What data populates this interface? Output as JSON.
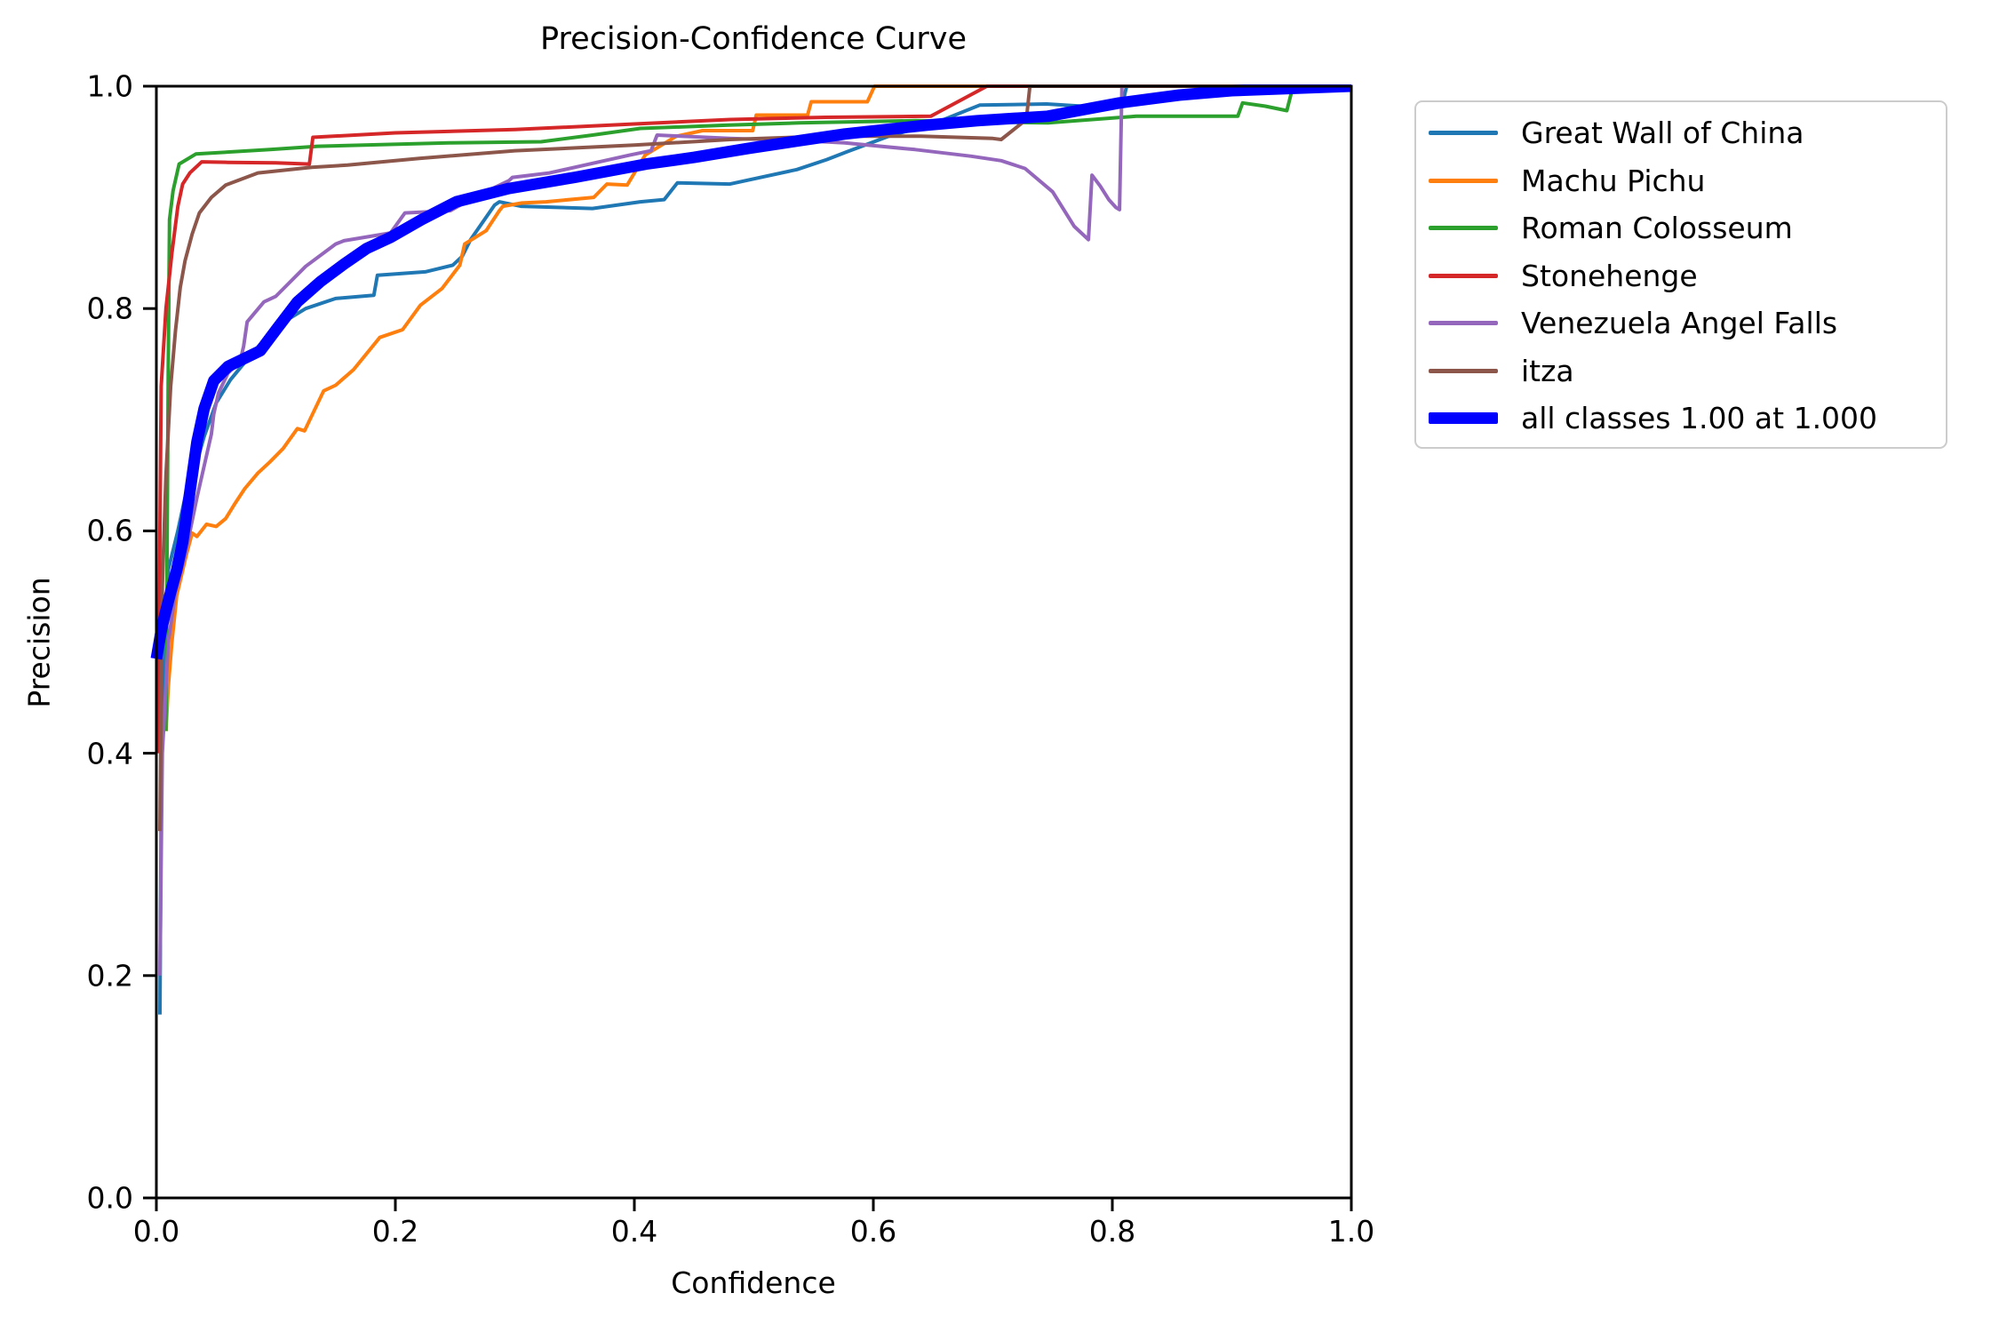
{
  "title": "Precision-Confidence Curve",
  "axes": {
    "x_label": "Confidence",
    "y_label": "Precision",
    "x_ticks": [
      "0.0",
      "0.2",
      "0.4",
      "0.6",
      "0.8",
      "1.0"
    ],
    "y_ticks": [
      "0.0",
      "0.2",
      "0.4",
      "0.6",
      "0.8",
      "1.0"
    ]
  },
  "colors": {
    "spine": "#000000",
    "legend_border": "#cccccc",
    "background": "#ffffff"
  },
  "chart_data": {
    "type": "line",
    "title": "Precision-Confidence Curve",
    "xlabel": "Confidence",
    "ylabel": "Precision",
    "xlim": [
      0.0,
      1.0
    ],
    "ylim": [
      0.0,
      1.0
    ],
    "x_ticks": [
      0.0,
      0.2,
      0.4,
      0.6,
      0.8,
      1.0
    ],
    "y_ticks": [
      0.0,
      0.2,
      0.4,
      0.6,
      0.8,
      1.0
    ],
    "grid": false,
    "legend_position": "outside upper right",
    "series": [
      {
        "name": "Great Wall of China",
        "color": "#1f77b4",
        "lw": 4,
        "points": [
          [
            0.003,
            0.165
          ],
          [
            0.004,
            0.35
          ],
          [
            0.006,
            0.5
          ],
          [
            0.01,
            0.565
          ],
          [
            0.018,
            0.6
          ],
          [
            0.025,
            0.635
          ],
          [
            0.032,
            0.655
          ],
          [
            0.04,
            0.685
          ],
          [
            0.05,
            0.715
          ],
          [
            0.062,
            0.736
          ],
          [
            0.082,
            0.762
          ],
          [
            0.102,
            0.785
          ],
          [
            0.125,
            0.8
          ],
          [
            0.15,
            0.809
          ],
          [
            0.182,
            0.812
          ],
          [
            0.185,
            0.83
          ],
          [
            0.225,
            0.833
          ],
          [
            0.248,
            0.839
          ],
          [
            0.256,
            0.847
          ],
          [
            0.263,
            0.862
          ],
          [
            0.283,
            0.893
          ],
          [
            0.287,
            0.896
          ],
          [
            0.305,
            0.892
          ],
          [
            0.365,
            0.89
          ],
          [
            0.405,
            0.896
          ],
          [
            0.425,
            0.898
          ],
          [
            0.436,
            0.913
          ],
          [
            0.48,
            0.912
          ],
          [
            0.536,
            0.925
          ],
          [
            0.561,
            0.934
          ],
          [
            0.578,
            0.941
          ],
          [
            0.613,
            0.955
          ],
          [
            0.652,
            0.967
          ],
          [
            0.689,
            0.983
          ],
          [
            0.745,
            0.984
          ],
          [
            0.775,
            0.982
          ],
          [
            0.808,
            0.982
          ],
          [
            0.812,
            1.0
          ],
          [
            1.0,
            1.0
          ]
        ]
      },
      {
        "name": "Machu Pichu",
        "color": "#ff7f0e",
        "lw": 4,
        "points": [
          [
            0.008,
            0.42
          ],
          [
            0.01,
            0.46
          ],
          [
            0.013,
            0.5
          ],
          [
            0.017,
            0.542
          ],
          [
            0.025,
            0.578
          ],
          [
            0.03,
            0.598
          ],
          [
            0.034,
            0.595
          ],
          [
            0.042,
            0.606
          ],
          [
            0.05,
            0.604
          ],
          [
            0.058,
            0.611
          ],
          [
            0.066,
            0.625
          ],
          [
            0.074,
            0.638
          ],
          [
            0.085,
            0.652
          ],
          [
            0.095,
            0.662
          ],
          [
            0.106,
            0.674
          ],
          [
            0.118,
            0.692
          ],
          [
            0.124,
            0.69
          ],
          [
            0.14,
            0.726
          ],
          [
            0.15,
            0.731
          ],
          [
            0.165,
            0.745
          ],
          [
            0.187,
            0.774
          ],
          [
            0.206,
            0.781
          ],
          [
            0.221,
            0.803
          ],
          [
            0.239,
            0.818
          ],
          [
            0.254,
            0.839
          ],
          [
            0.258,
            0.858
          ],
          [
            0.276,
            0.87
          ],
          [
            0.287,
            0.888
          ],
          [
            0.29,
            0.892
          ],
          [
            0.306,
            0.895
          ],
          [
            0.326,
            0.896
          ],
          [
            0.366,
            0.9
          ],
          [
            0.377,
            0.912
          ],
          [
            0.394,
            0.911
          ],
          [
            0.409,
            0.938
          ],
          [
            0.435,
            0.955
          ],
          [
            0.457,
            0.96
          ],
          [
            0.499,
            0.96
          ],
          [
            0.502,
            0.974
          ],
          [
            0.545,
            0.974
          ],
          [
            0.548,
            0.986
          ],
          [
            0.595,
            0.986
          ],
          [
            0.601,
            1.0
          ],
          [
            1.0,
            1.0
          ]
        ]
      },
      {
        "name": "Roman Colosseum",
        "color": "#2ca02c",
        "lw": 4,
        "points": [
          [
            0.008,
            0.42
          ],
          [
            0.01,
            0.75
          ],
          [
            0.011,
            0.88
          ],
          [
            0.014,
            0.906
          ],
          [
            0.019,
            0.93
          ],
          [
            0.033,
            0.939
          ],
          [
            0.095,
            0.943
          ],
          [
            0.135,
            0.946
          ],
          [
            0.245,
            0.949
          ],
          [
            0.322,
            0.95
          ],
          [
            0.365,
            0.956
          ],
          [
            0.405,
            0.962
          ],
          [
            0.479,
            0.965
          ],
          [
            0.538,
            0.967
          ],
          [
            0.635,
            0.969
          ],
          [
            0.746,
            0.967
          ],
          [
            0.82,
            0.973
          ],
          [
            0.905,
            0.973
          ],
          [
            0.909,
            0.985
          ],
          [
            0.928,
            0.982
          ],
          [
            0.946,
            0.978
          ],
          [
            0.95,
            0.995
          ],
          [
            0.963,
            1.0
          ],
          [
            1.0,
            1.0
          ]
        ]
      },
      {
        "name": "Stonehenge",
        "color": "#d62728",
        "lw": 4,
        "points": [
          [
            0.002,
            0.4
          ],
          [
            0.003,
            0.6
          ],
          [
            0.004,
            0.73
          ],
          [
            0.008,
            0.8
          ],
          [
            0.013,
            0.85
          ],
          [
            0.018,
            0.892
          ],
          [
            0.022,
            0.912
          ],
          [
            0.028,
            0.922
          ],
          [
            0.038,
            0.932
          ],
          [
            0.06,
            0.9315
          ],
          [
            0.1,
            0.931
          ],
          [
            0.128,
            0.93
          ],
          [
            0.131,
            0.954
          ],
          [
            0.2,
            0.958
          ],
          [
            0.3,
            0.961
          ],
          [
            0.4,
            0.966
          ],
          [
            0.48,
            0.97
          ],
          [
            0.56,
            0.972
          ],
          [
            0.648,
            0.973
          ],
          [
            0.695,
            1.0
          ],
          [
            1.0,
            1.0
          ]
        ]
      },
      {
        "name": "Venezuela Angel Falls",
        "color": "#9467bd",
        "lw": 4,
        "points": [
          [
            0.003,
            0.2
          ],
          [
            0.005,
            0.4
          ],
          [
            0.01,
            0.5
          ],
          [
            0.016,
            0.545
          ],
          [
            0.024,
            0.578
          ],
          [
            0.034,
            0.63
          ],
          [
            0.046,
            0.687
          ],
          [
            0.048,
            0.705
          ],
          [
            0.052,
            0.724
          ],
          [
            0.06,
            0.742
          ],
          [
            0.07,
            0.752
          ],
          [
            0.073,
            0.766
          ],
          [
            0.076,
            0.788
          ],
          [
            0.09,
            0.806
          ],
          [
            0.1,
            0.811
          ],
          [
            0.125,
            0.838
          ],
          [
            0.15,
            0.858
          ],
          [
            0.157,
            0.861
          ],
          [
            0.185,
            0.866
          ],
          [
            0.196,
            0.868
          ],
          [
            0.208,
            0.886
          ],
          [
            0.246,
            0.888
          ],
          [
            0.266,
            0.9
          ],
          [
            0.295,
            0.915
          ],
          [
            0.298,
            0.918
          ],
          [
            0.329,
            0.922
          ],
          [
            0.396,
            0.938
          ],
          [
            0.414,
            0.942
          ],
          [
            0.419,
            0.956
          ],
          [
            0.48,
            0.953
          ],
          [
            0.54,
            0.951
          ],
          [
            0.576,
            0.949
          ],
          [
            0.635,
            0.943
          ],
          [
            0.682,
            0.937
          ],
          [
            0.707,
            0.933
          ],
          [
            0.727,
            0.926
          ],
          [
            0.75,
            0.905
          ],
          [
            0.768,
            0.874
          ],
          [
            0.78,
            0.862
          ],
          [
            0.783,
            0.92
          ],
          [
            0.79,
            0.91
          ],
          [
            0.797,
            0.898
          ],
          [
            0.803,
            0.891
          ],
          [
            0.806,
            0.889
          ],
          [
            0.808,
            1.0
          ],
          [
            1.0,
            1.0
          ]
        ]
      },
      {
        "name": "itza",
        "color": "#8c564b",
        "lw": 4,
        "points": [
          [
            0.003,
            0.33
          ],
          [
            0.005,
            0.55
          ],
          [
            0.008,
            0.65
          ],
          [
            0.012,
            0.73
          ],
          [
            0.016,
            0.78
          ],
          [
            0.02,
            0.819
          ],
          [
            0.024,
            0.843
          ],
          [
            0.03,
            0.867
          ],
          [
            0.036,
            0.886
          ],
          [
            0.046,
            0.9
          ],
          [
            0.058,
            0.911
          ],
          [
            0.085,
            0.922
          ],
          [
            0.13,
            0.927
          ],
          [
            0.16,
            0.929
          ],
          [
            0.22,
            0.935
          ],
          [
            0.3,
            0.942
          ],
          [
            0.4,
            0.947
          ],
          [
            0.48,
            0.952
          ],
          [
            0.56,
            0.955
          ],
          [
            0.64,
            0.955
          ],
          [
            0.7,
            0.953
          ],
          [
            0.707,
            0.952
          ],
          [
            0.728,
            0.97
          ],
          [
            0.731,
            1.0
          ],
          [
            1.0,
            1.0
          ]
        ]
      },
      {
        "name": "all classes 1.00 at 1.000",
        "color": "#0000ff",
        "lw": 13,
        "points": [
          [
            0.0,
            0.485
          ],
          [
            0.004,
            0.51
          ],
          [
            0.007,
            0.524
          ],
          [
            0.012,
            0.545
          ],
          [
            0.017,
            0.565
          ],
          [
            0.022,
            0.59
          ],
          [
            0.028,
            0.635
          ],
          [
            0.034,
            0.68
          ],
          [
            0.04,
            0.71
          ],
          [
            0.048,
            0.735
          ],
          [
            0.06,
            0.748
          ],
          [
            0.087,
            0.762
          ],
          [
            0.101,
            0.782
          ],
          [
            0.118,
            0.806
          ],
          [
            0.137,
            0.824
          ],
          [
            0.157,
            0.84
          ],
          [
            0.176,
            0.854
          ],
          [
            0.196,
            0.864
          ],
          [
            0.222,
            0.88
          ],
          [
            0.251,
            0.896
          ],
          [
            0.295,
            0.908
          ],
          [
            0.35,
            0.918
          ],
          [
            0.41,
            0.93
          ],
          [
            0.45,
            0.936
          ],
          [
            0.495,
            0.944
          ],
          [
            0.538,
            0.951
          ],
          [
            0.576,
            0.957
          ],
          [
            0.645,
            0.965
          ],
          [
            0.687,
            0.969
          ],
          [
            0.746,
            0.973
          ],
          [
            0.806,
            0.985
          ],
          [
            0.856,
            0.992
          ],
          [
            0.9,
            0.996
          ],
          [
            0.95,
            0.998
          ],
          [
            1.0,
            1.0
          ]
        ]
      }
    ]
  }
}
